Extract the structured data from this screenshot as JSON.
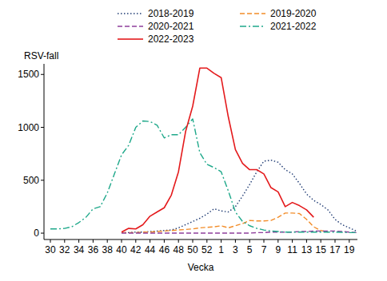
{
  "chart_data": {
    "type": "line",
    "y_label": "RSV-fall",
    "x_label": "Vecka",
    "categories": [
      "30",
      null,
      "32",
      null,
      "34",
      null,
      "36",
      null,
      "38",
      null,
      "40",
      null,
      "42",
      null,
      "44",
      null,
      "46",
      null,
      "48",
      null,
      "50",
      null,
      "52",
      null,
      "1",
      null,
      "3",
      null,
      "5",
      null,
      "7",
      null,
      "9",
      null,
      "11",
      null,
      "13",
      null,
      "15",
      null,
      "17",
      null,
      "19",
      null
    ],
    "ylim": [
      -60,
      1600
    ],
    "yticks": [
      0,
      500,
      1000,
      1500
    ],
    "grid": false,
    "legend": "top",
    "series": [
      {
        "name": "2018-2019",
        "color": "#1f3b73",
        "line_style": "dotted",
        "values": [
          null,
          null,
          null,
          null,
          null,
          null,
          null,
          null,
          null,
          null,
          5,
          5,
          10,
          10,
          15,
          20,
          25,
          30,
          50,
          80,
          110,
          140,
          180,
          230,
          210,
          200,
          250,
          350,
          460,
          580,
          680,
          690,
          670,
          600,
          560,
          470,
          370,
          310,
          270,
          220,
          130,
          80,
          50,
          20
        ]
      },
      {
        "name": "2019-2020",
        "color": "#f28c28",
        "line_style": "dashed",
        "values": [
          null,
          null,
          null,
          null,
          null,
          null,
          null,
          null,
          null,
          null,
          5,
          5,
          5,
          10,
          10,
          15,
          20,
          25,
          30,
          35,
          40,
          50,
          55,
          60,
          70,
          50,
          70,
          90,
          120,
          115,
          115,
          120,
          150,
          190,
          190,
          185,
          130,
          60,
          25,
          10,
          null,
          null,
          null,
          null
        ]
      },
      {
        "name": "2020-2021",
        "color": "#8e3f9c",
        "line_style": "dashed",
        "values": [
          null,
          null,
          null,
          null,
          null,
          null,
          null,
          null,
          null,
          null,
          0,
          0,
          0,
          0,
          0,
          0,
          0,
          0,
          0,
          0,
          0,
          0,
          0,
          0,
          0,
          0,
          0,
          0,
          0,
          5,
          5,
          10,
          10,
          10,
          10,
          15,
          15,
          20,
          20,
          20,
          20,
          15,
          10,
          5
        ]
      },
      {
        "name": "2021-2022",
        "color": "#1ea88a",
        "line_style": "dashdot",
        "values": [
          40,
          40,
          45,
          60,
          100,
          150,
          230,
          250,
          380,
          560,
          740,
          830,
          1000,
          1060,
          1055,
          1020,
          900,
          930,
          930,
          1000,
          1080,
          760,
          650,
          620,
          580,
          400,
          200,
          110,
          70,
          45,
          30,
          20,
          15,
          10,
          10,
          10,
          10,
          10,
          10,
          10,
          10,
          8,
          5,
          5
        ]
      },
      {
        "name": "2022-2023",
        "color": "#e41a1c",
        "line_style": "solid",
        "values": [
          null,
          null,
          null,
          null,
          null,
          null,
          null,
          null,
          null,
          null,
          10,
          45,
          40,
          80,
          160,
          200,
          240,
          360,
          580,
          960,
          1200,
          1560,
          1560,
          1510,
          1470,
          1100,
          790,
          660,
          600,
          600,
          560,
          430,
          390,
          250,
          290,
          260,
          220,
          150,
          null,
          null,
          null,
          null,
          null,
          null
        ]
      }
    ]
  }
}
